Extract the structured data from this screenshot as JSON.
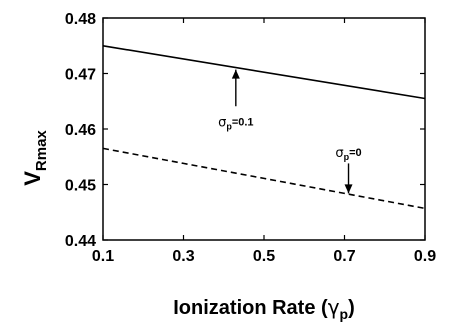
{
  "chart_data": {
    "type": "line",
    "xlabel": {
      "main": "Ionization Rate (",
      "symbol": "γ",
      "sub": "p",
      "close": ")"
    },
    "ylabel": {
      "main": "V",
      "sub": "Rmax"
    },
    "xlim": [
      0.1,
      0.9
    ],
    "ylim": [
      0.44,
      0.48
    ],
    "x_ticks": [
      0.1,
      0.3,
      0.5,
      0.7,
      0.9
    ],
    "x_tick_labels": [
      "0.1",
      "0.3",
      "0.5",
      "0.7",
      "0.9"
    ],
    "y_ticks": [
      0.44,
      0.45,
      0.46,
      0.47,
      0.48
    ],
    "y_tick_labels": [
      "0.44",
      "0.45",
      "0.46",
      "0.47",
      "0.48"
    ],
    "grid": false,
    "series": [
      {
        "style": "solid",
        "x": [
          0.1,
          0.9
        ],
        "y": [
          0.475,
          0.4655
        ]
      },
      {
        "style": "dashed",
        "x": [
          0.1,
          0.3,
          0.5,
          0.7,
          0.9
        ],
        "y": [
          0.4565,
          0.4538,
          0.4511,
          0.4484,
          0.4457
        ]
      }
    ],
    "annotations": [
      {
        "symbol": "σ",
        "sub": "p",
        "value": "=0.1",
        "text_x": 0.43,
        "text_y": 0.4612,
        "arrow_x": 0.43,
        "arrow_from_y": 0.4641,
        "arrow_to_y": 0.4707,
        "arrow_dir": "up"
      },
      {
        "symbol": "σ",
        "sub": "p",
        "value": "=0",
        "text_x": 0.71,
        "text_y": 0.4557,
        "arrow_x": 0.71,
        "arrow_from_y": 0.4538,
        "arrow_to_y": 0.4484,
        "arrow_dir": "down"
      }
    ]
  }
}
